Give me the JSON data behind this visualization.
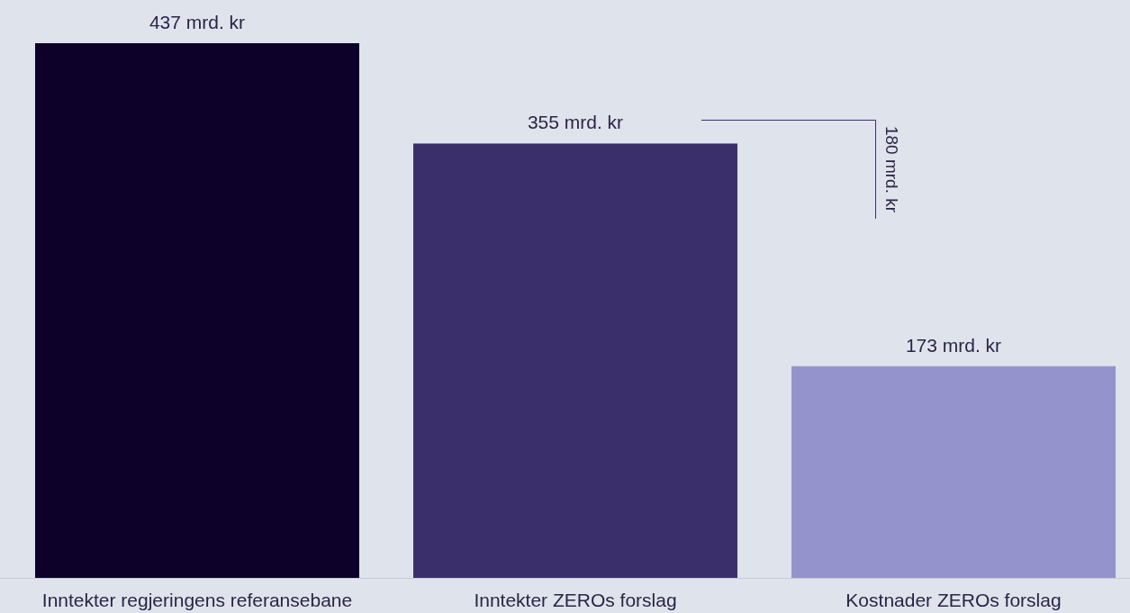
{
  "chart_data": {
    "type": "bar",
    "categories": [
      "Inntekter regjeringens referansebane",
      "Inntekter ZEROs forslag",
      "Kostnader ZEROs forslag"
    ],
    "values": [
      437,
      355,
      173
    ],
    "colors": [
      "#0d0129",
      "#3b2f6b",
      "#9593cb"
    ],
    "value_labels": [
      "437 mrd. kr",
      "355 mrd. kr",
      "173 mrd. kr"
    ],
    "annotations": [
      "180 mrd. kr"
    ]
  }
}
